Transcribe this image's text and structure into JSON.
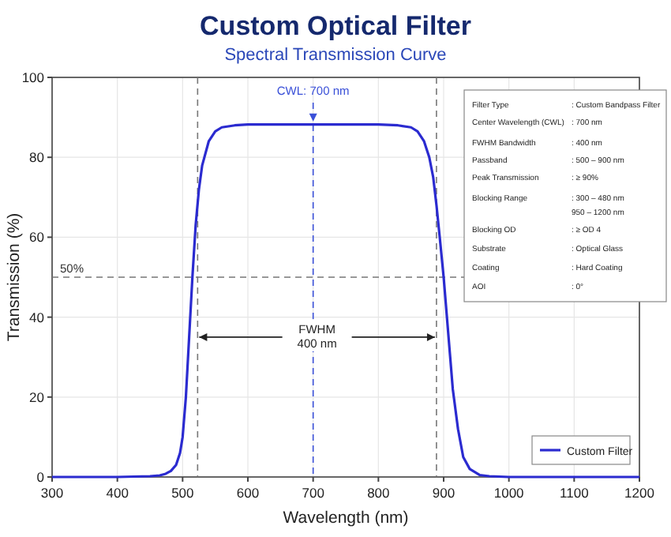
{
  "chart_data": {
    "type": "line",
    "title": "Custom Optical Filter",
    "subtitle": "Spectral Transmission Curve",
    "xlabel": "Wavelength (nm)",
    "ylabel": "Transmission (%)",
    "xlim": [
      300,
      1200
    ],
    "xticks": [
      300,
      400,
      500,
      600,
      700,
      800,
      900,
      1000,
      1100,
      1200
    ],
    "ylim": [
      0,
      100
    ],
    "yticks": [
      0,
      20,
      40,
      60,
      80,
      100
    ],
    "grid": true,
    "legend": "bottom right",
    "line_style": "solid",
    "marker": "none",
    "series": [
      {
        "name": "Custom Filter",
        "color": "#2b2bd0",
        "x": [
          300,
          400,
          450,
          465,
          474,
          482,
          490,
          496,
          500,
          505,
          510,
          515,
          520,
          525,
          530,
          540,
          550,
          560,
          580,
          600,
          650,
          700,
          750,
          800,
          830,
          850,
          860,
          870,
          878,
          884,
          889,
          894,
          900,
          906,
          914,
          922,
          930,
          940,
          955,
          970,
          1000,
          1100,
          1200
        ],
        "values": [
          0,
          0,
          0.2,
          0.4,
          0.8,
          1.5,
          3,
          6,
          10,
          20,
          35,
          50,
          63,
          72,
          78,
          84,
          86.5,
          87.5,
          88,
          88.2,
          88.2,
          88.2,
          88.2,
          88.2,
          88,
          87.5,
          86.5,
          84,
          80,
          75,
          68,
          60,
          50,
          38,
          22,
          12,
          5,
          2,
          0.5,
          0.2,
          0,
          0,
          0
        ]
      }
    ],
    "ref_lines": [
      {
        "axis": "y",
        "value": 50,
        "label": "50%",
        "color": "#777777",
        "line_style": "dashed"
      },
      {
        "axis": "x",
        "value": 700,
        "label": "CWL: 700 nm",
        "color": "#3a50d8",
        "line_style": "dashed"
      },
      {
        "axis": "x",
        "value": 523,
        "label": null,
        "color": "#777777",
        "line_style": "dashed"
      },
      {
        "axis": "x",
        "value": 889,
        "label": null,
        "color": "#777777",
        "line_style": "dashed"
      }
    ],
    "annotations": [
      {
        "text": "FWHM\n400 nm",
        "x": 706,
        "y": 35
      },
      "Filter Type : Custom Bandpass Filter",
      "Center Wavelength (CWL) : 700 nm",
      "FWHM Bandwidth : 400 nm",
      "Passband : 500 – 900 nm",
      "Peak Transmission : ≥ 90%",
      "Blocking Range : 300 – 480 nm\n950 – 1200 nm",
      "Blocking OD : ≥ OD 4",
      "Substrate : Optical Glass",
      "Coating : Hard Coating",
      "AOI : 0°"
    ]
  }
}
